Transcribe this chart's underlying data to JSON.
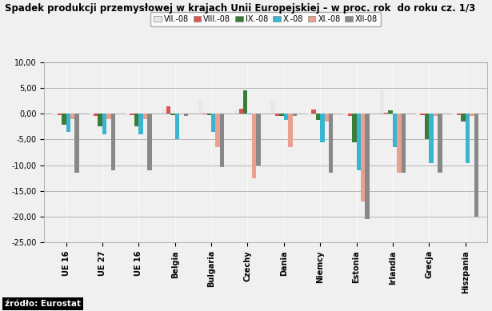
{
  "title": "Spadek produkcji przemysłowej w krajach Unii Europejskiej – w proc. rok  do roku cz. 1/3",
  "categories": [
    "UE 16",
    "UE 27",
    "UE 16",
    "Belgia",
    "Bulgaria",
    "Czechy",
    "Dania",
    "Niemcy",
    "Estonia",
    "Irlandia",
    "Grecja",
    "Hiszpania"
  ],
  "series_labels": [
    "VII.-08",
    "VIII.-08",
    "IX.-08",
    "X.-08",
    "XI.-08",
    "XII-08"
  ],
  "colors": [
    "#e8e8e8",
    "#d9534f",
    "#3a7d3a",
    "#3ab5d0",
    "#e8a090",
    "#888888"
  ],
  "ylim": [
    -25,
    10
  ],
  "yticks": [
    10,
    5,
    0,
    -5,
    -10,
    -15,
    -20,
    -25
  ],
  "data": [
    [
      -0.5,
      -0.3,
      -2.2,
      -3.5,
      -1.0,
      -11.5
    ],
    [
      -0.5,
      -0.5,
      -2.5,
      -4.0,
      -1.0,
      -11.0
    ],
    [
      -0.5,
      -0.3,
      -2.5,
      -4.0,
      -1.0,
      -11.0
    ],
    [
      0.8,
      1.5,
      -0.2,
      -5.0,
      0.0,
      -0.5
    ],
    [
      2.8,
      -0.1,
      -0.3,
      -3.5,
      -6.5,
      -10.3
    ],
    [
      0.7,
      1.0,
      4.5,
      -0.1,
      -12.5,
      -10.0
    ],
    [
      2.5,
      -0.5,
      -0.5,
      -1.2,
      -6.5,
      -0.5
    ],
    [
      -0.5,
      0.8,
      -1.2,
      -5.5,
      -1.5,
      -11.5
    ],
    [
      -0.5,
      -0.5,
      -5.5,
      -11.0,
      -17.0,
      -20.5
    ],
    [
      4.7,
      0.2,
      0.7,
      -6.5,
      -11.5,
      -11.5
    ],
    [
      -0.5,
      -0.3,
      -5.0,
      -9.5,
      -0.5,
      -11.5
    ],
    [
      -0.3,
      -0.3,
      -1.5,
      -9.5,
      -0.5,
      -20.0
    ]
  ],
  "source_text": "źródło: Eurostat",
  "bg_color": "#f0f0f0",
  "plot_bg": "#f0f0f0",
  "bar_width": 0.12,
  "title_fontsize": 8.5,
  "tick_fontsize": 7.0,
  "legend_fontsize": 7.0
}
